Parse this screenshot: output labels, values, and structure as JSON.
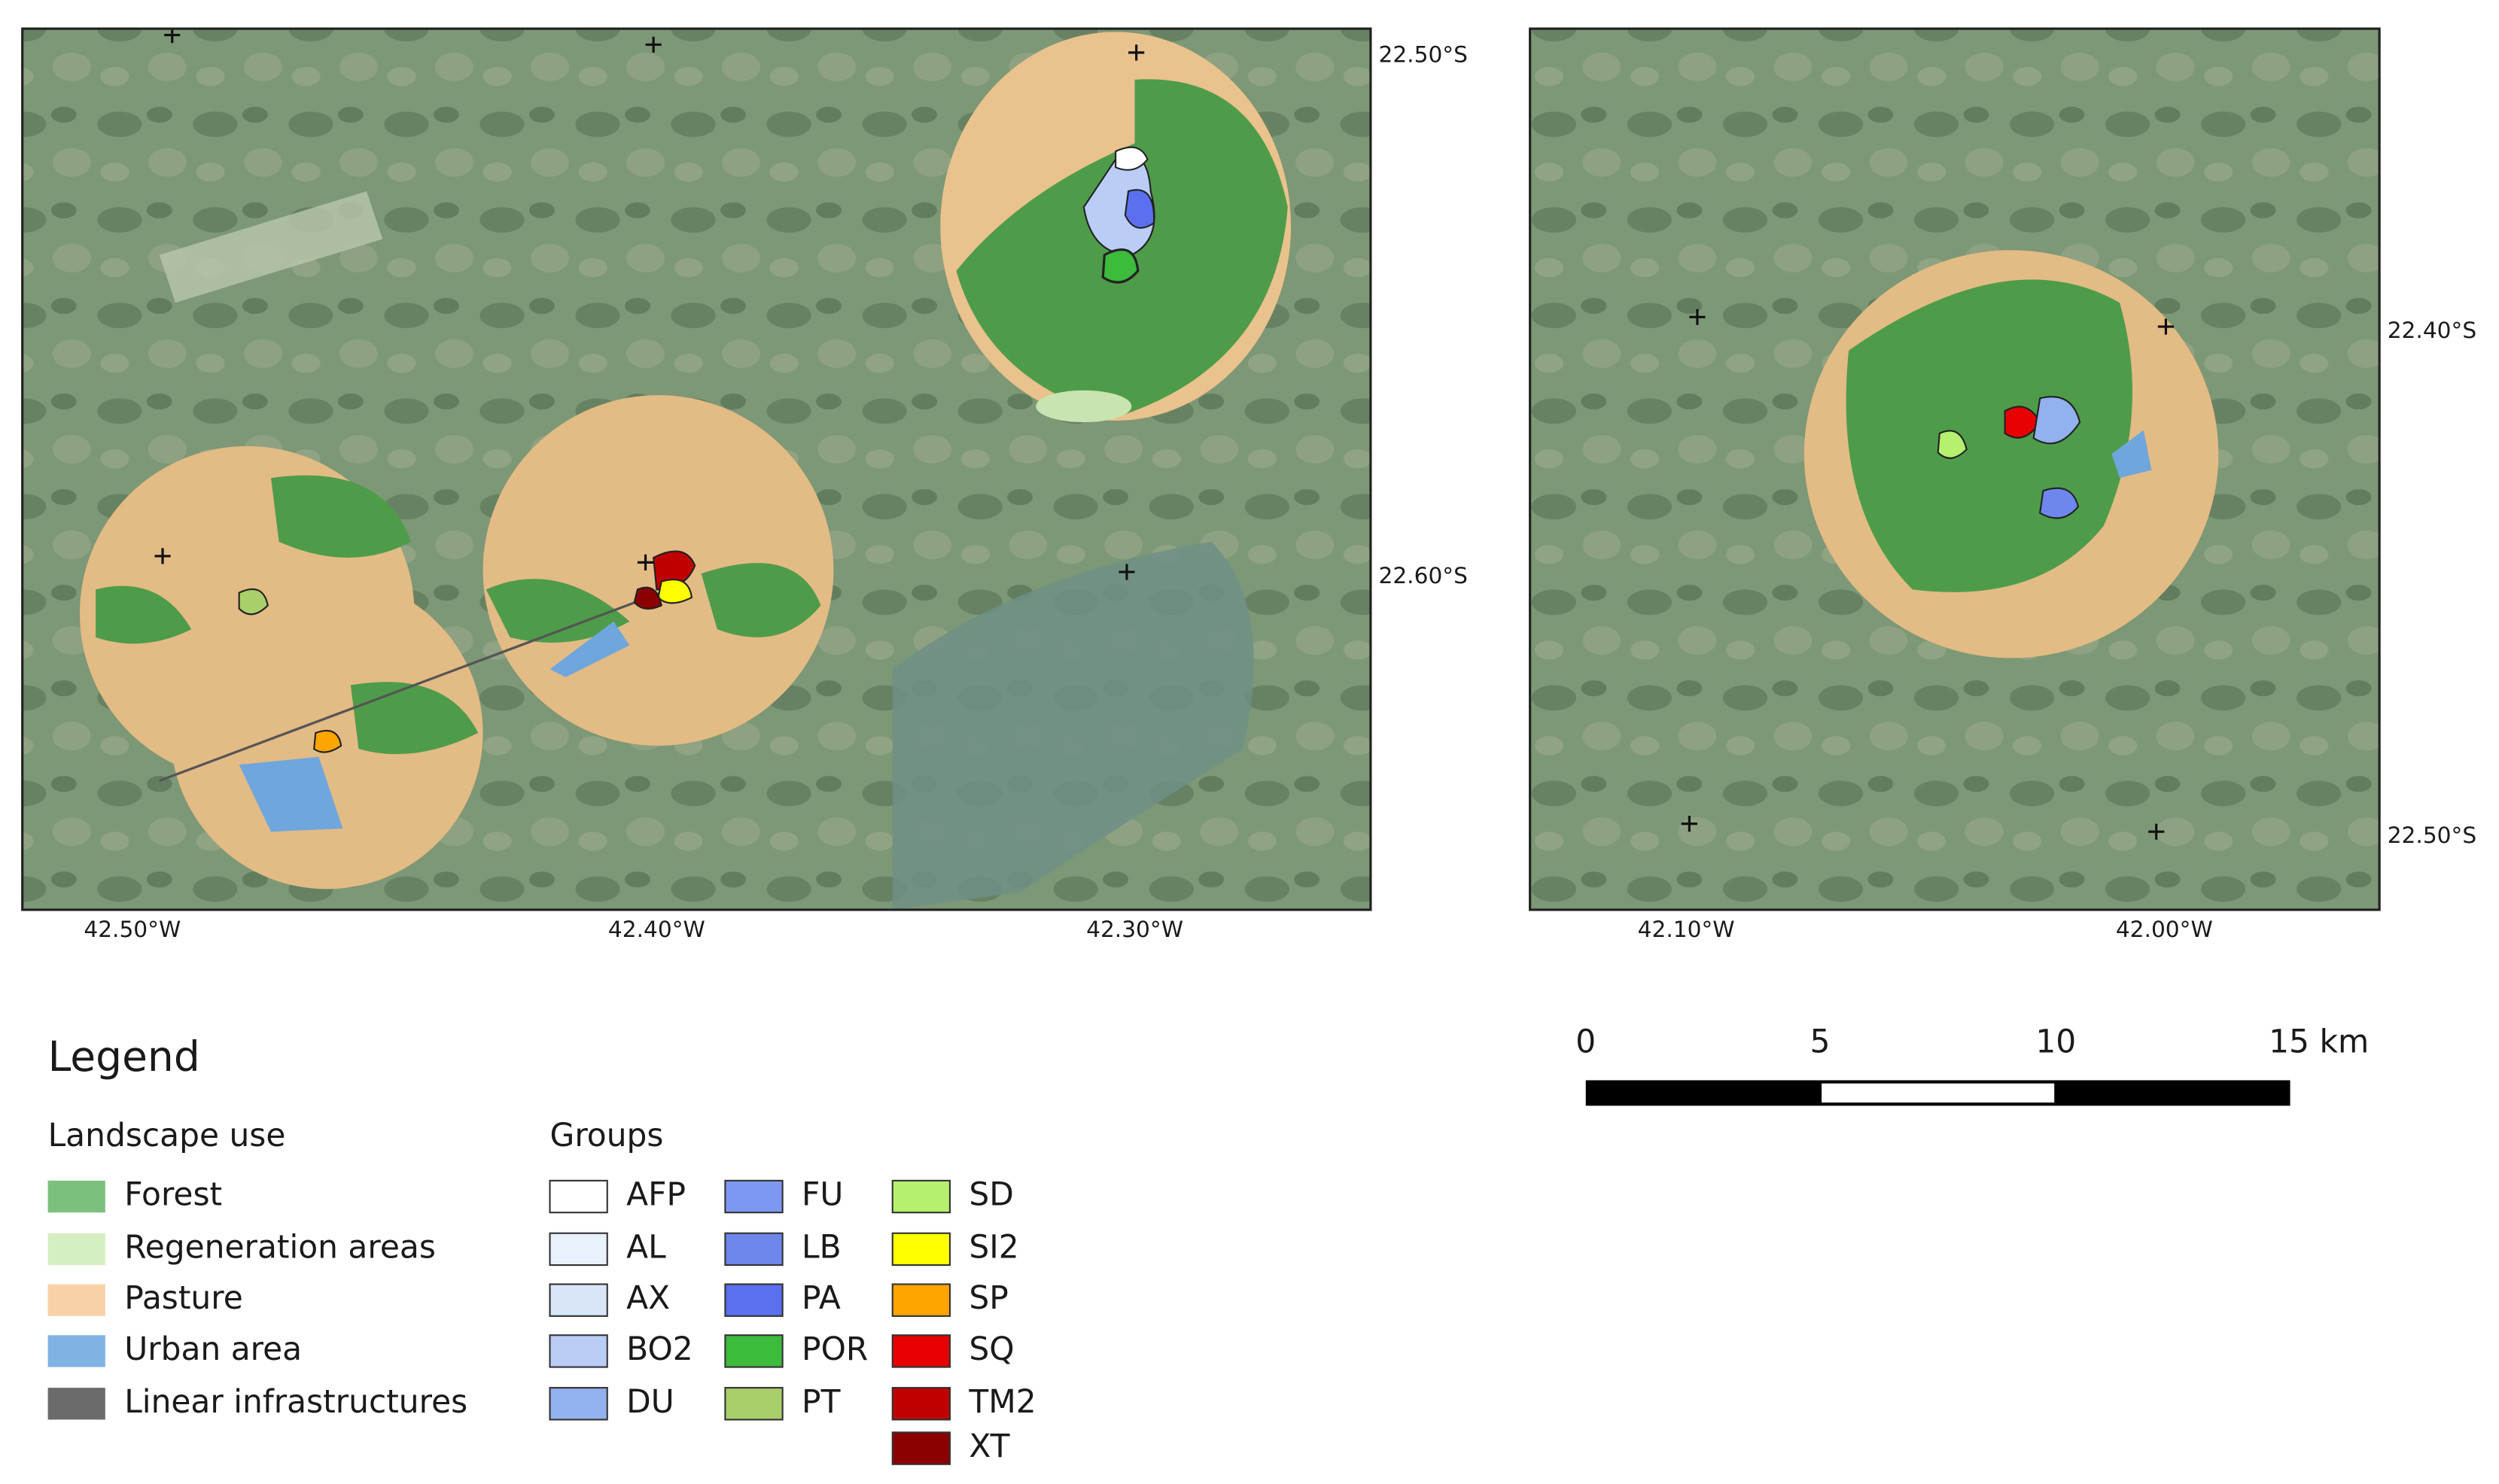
{
  "left_map": {
    "lat_labels": [
      "22.50°S",
      "22.60°S"
    ],
    "lon_labels": [
      "42.50°W",
      "42.40°W",
      "42.30°W"
    ]
  },
  "right_map": {
    "lat_labels": [
      "22.40°S",
      "22.50°S"
    ],
    "lon_labels": [
      "42.10°W",
      "42.00°W"
    ]
  },
  "scale_bar": {
    "labels": [
      "0",
      "5",
      "10",
      "15 km"
    ]
  },
  "legend": {
    "title": "Legend",
    "landscape_use": {
      "title": "Landscape use",
      "items": [
        {
          "label": "Forest",
          "color": "#7cc07e"
        },
        {
          "label": "Regeneration areas",
          "color": "#d6efc2"
        },
        {
          "label": "Pasture",
          "color": "#f8d2a6"
        },
        {
          "label": "Urban area",
          "color": "#80b3e4"
        },
        {
          "label": "Linear infrastructures",
          "color": "#6b6b6b"
        }
      ]
    },
    "groups": {
      "title": "Groups",
      "items": [
        {
          "label": "AFP",
          "color": "#ffffff"
        },
        {
          "label": "AL",
          "color": "#e9f2fc"
        },
        {
          "label": "AX",
          "color": "#d9e6f8"
        },
        {
          "label": "BO2",
          "color": "#b9cdf6"
        },
        {
          "label": "DU",
          "color": "#92b1ee"
        },
        {
          "label": "FU",
          "color": "#7e98f2"
        },
        {
          "label": "LB",
          "color": "#6d87ec"
        },
        {
          "label": "PA",
          "color": "#5b6ff0"
        },
        {
          "label": "POR",
          "color": "#3cbb3c"
        },
        {
          "label": "PT",
          "color": "#a9cf6b"
        },
        {
          "label": "SD",
          "color": "#b5f06f"
        },
        {
          "label": "SI2",
          "color": "#ffff00"
        },
        {
          "label": "SP",
          "color": "#ffa500"
        },
        {
          "label": "SQ",
          "color": "#e60000"
        },
        {
          "label": "TM2",
          "color": "#c00000"
        },
        {
          "label": "XT",
          "color": "#8b0000"
        }
      ]
    }
  }
}
